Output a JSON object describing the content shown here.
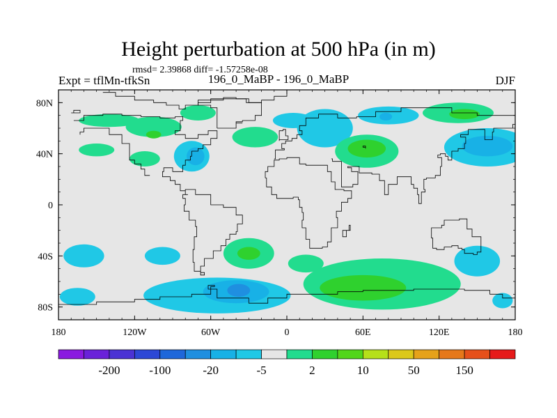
{
  "chart_data": {
    "type": "heatmap",
    "title": "Height perturbation at 500 hPa (in m)",
    "stats": {
      "rmsd": "2.39868",
      "diff": "-1.57258e-08",
      "text": "rmsd= 2.39868 diff= -1.57258e-08"
    },
    "left_label": "Expt = tflMn-tfkSn",
    "center_label": "196_0_MaBP - 196_0_MaBP",
    "right_label": "DJF",
    "units": "m",
    "xlim": [
      -180,
      180
    ],
    "ylim": [
      -90,
      90
    ],
    "x_ticks": [
      {
        "value": -180,
        "label": "180"
      },
      {
        "value": -120,
        "label": "120W"
      },
      {
        "value": -60,
        "label": "60W"
      },
      {
        "value": 0,
        "label": "0"
      },
      {
        "value": 60,
        "label": "60E"
      },
      {
        "value": 120,
        "label": "120E"
      },
      {
        "value": 180,
        "label": "180"
      }
    ],
    "y_ticks": [
      {
        "value": 80,
        "label": "80N"
      },
      {
        "value": 40,
        "label": "40N"
      },
      {
        "value": 0,
        "label": "0"
      },
      {
        "value": -40,
        "label": "40S"
      },
      {
        "value": -80,
        "label": "80S"
      }
    ],
    "colorbar": {
      "colors": [
        "#8a1ae0",
        "#6a22d9",
        "#4b33d4",
        "#2d48d6",
        "#1e67da",
        "#1f8fe0",
        "#18b1e6",
        "#20c8e6",
        "#e6e6e6",
        "#22dc8e",
        "#2fd12e",
        "#52d61a",
        "#b6e01a",
        "#dcc81a",
        "#e6a21a",
        "#e6781a",
        "#e6501a",
        "#e61a1a"
      ],
      "labels": [
        "-200",
        "-100",
        "-20",
        "-5",
        "2",
        "10",
        "50",
        "150"
      ],
      "label_after_box": [
        1,
        3,
        5,
        7,
        9,
        11,
        13,
        15
      ]
    },
    "anomalies": [
      {
        "lon": -140,
        "lat": 66,
        "rlon": 24,
        "rlat": 5,
        "level": 1
      },
      {
        "lon": -105,
        "lat": 61,
        "rlon": 22,
        "rlat": 8,
        "level": 1
      },
      {
        "lon": -105,
        "lat": 55,
        "rlon": 6,
        "rlat": 3,
        "level": 2
      },
      {
        "lon": -112,
        "lat": 36,
        "rlon": 12,
        "rlat": 6,
        "level": 1
      },
      {
        "lon": -150,
        "lat": 43,
        "rlon": 14,
        "rlat": 5,
        "level": 1
      },
      {
        "lon": -75,
        "lat": 38,
        "rlon": 14,
        "rlat": 12,
        "level": -1
      },
      {
        "lon": -72,
        "lat": 38,
        "rlon": 7,
        "rlat": 7,
        "level": -2
      },
      {
        "lon": -70,
        "lat": 72,
        "rlon": 14,
        "rlat": 6,
        "level": 1
      },
      {
        "lon": -25,
        "lat": 53,
        "rlon": 18,
        "rlat": 8,
        "level": 1
      },
      {
        "lon": 5,
        "lat": 66,
        "rlon": 16,
        "rlat": 6,
        "level": -1
      },
      {
        "lon": 30,
        "lat": 60,
        "rlon": 22,
        "rlat": 15,
        "level": -1
      },
      {
        "lon": 63,
        "lat": 42,
        "rlon": 25,
        "rlat": 13,
        "level": 1
      },
      {
        "lon": 63,
        "lat": 44,
        "rlon": 15,
        "rlat": 7,
        "level": 2
      },
      {
        "lon": 80,
        "lat": 70,
        "rlon": 24,
        "rlat": 7,
        "level": -1
      },
      {
        "lon": 78,
        "lat": 69,
        "rlon": 5,
        "rlat": 3,
        "level": -2
      },
      {
        "lon": 135,
        "lat": 72,
        "rlon": 28,
        "rlat": 8,
        "level": 1
      },
      {
        "lon": 140,
        "lat": 71,
        "rlon": 12,
        "rlat": 4,
        "level": 2
      },
      {
        "lon": 158,
        "lat": 45,
        "rlon": 34,
        "rlat": 15,
        "level": -1
      },
      {
        "lon": 158,
        "lat": 46,
        "rlon": 20,
        "rlat": 8,
        "level": -2
      },
      {
        "lon": -160,
        "lat": -40,
        "rlon": 16,
        "rlat": 9,
        "level": -1
      },
      {
        "lon": -98,
        "lat": -40,
        "rlon": 14,
        "rlat": 7,
        "level": -1
      },
      {
        "lon": -30,
        "lat": -38,
        "rlon": 20,
        "rlat": 12,
        "level": 1
      },
      {
        "lon": -30,
        "lat": -38,
        "rlon": 9,
        "rlat": 5,
        "level": 2
      },
      {
        "lon": 15,
        "lat": -46,
        "rlon": 14,
        "rlat": 7,
        "level": 1
      },
      {
        "lon": 150,
        "lat": -44,
        "rlon": 18,
        "rlat": 12,
        "level": -1
      },
      {
        "lon": -55,
        "lat": -71,
        "rlon": 58,
        "rlat": 14,
        "level": -1
      },
      {
        "lon": -40,
        "lat": -68,
        "rlon": 26,
        "rlat": 9,
        "level": -2
      },
      {
        "lon": -38,
        "lat": -67,
        "rlon": 9,
        "rlat": 5,
        "level": -3
      },
      {
        "lon": -165,
        "lat": -72,
        "rlon": 14,
        "rlat": 7,
        "level": -1
      },
      {
        "lon": 75,
        "lat": -62,
        "rlon": 62,
        "rlat": 20,
        "level": 1
      },
      {
        "lon": 60,
        "lat": -65,
        "rlon": 34,
        "rlat": 10,
        "level": 2
      },
      {
        "lon": 170,
        "lat": -75,
        "rlon": 8,
        "rlat": 6,
        "level": -1
      }
    ],
    "coastlines": [
      [
        [
          -145,
          88
        ],
        [
          -135,
          85
        ],
        [
          -120,
          82
        ],
        [
          -105,
          80
        ],
        [
          -95,
          78
        ],
        [
          -85,
          75
        ],
        [
          -80,
          78
        ],
        [
          -70,
          80
        ],
        [
          -60,
          82
        ],
        [
          -50,
          84
        ],
        [
          -40,
          83
        ],
        [
          -30,
          80
        ],
        [
          -20,
          82
        ],
        [
          -10,
          85
        ],
        [
          0,
          88
        ]
      ],
      [
        [
          -168,
          66
        ],
        [
          -160,
          70
        ],
        [
          -145,
          71
        ],
        [
          -130,
          70
        ],
        [
          -115,
          69
        ],
        [
          -100,
          68
        ],
        [
          -88,
          69
        ],
        [
          -82,
          66
        ],
        [
          -84,
          58
        ],
        [
          -88,
          55
        ],
        [
          -80,
          52
        ],
        [
          -70,
          55
        ],
        [
          -62,
          58
        ],
        [
          -55,
          52
        ],
        [
          -60,
          47
        ],
        [
          -66,
          44
        ],
        [
          -70,
          42
        ],
        [
          -75,
          38
        ],
        [
          -76,
          35
        ],
        [
          -80,
          31
        ],
        [
          -82,
          26
        ],
        [
          -90,
          29
        ],
        [
          -97,
          26
        ],
        [
          -98,
          22
        ],
        [
          -92,
          19
        ],
        [
          -88,
          16
        ],
        [
          -84,
          11
        ],
        [
          -80,
          8
        ],
        [
          -78,
          8
        ],
        [
          -82,
          5
        ],
        [
          -80,
          0
        ],
        [
          -81,
          -5
        ],
        [
          -77,
          -12
        ],
        [
          -72,
          -17
        ],
        [
          -71,
          -25
        ],
        [
          -73,
          -35
        ],
        [
          -74,
          -45
        ],
        [
          -73,
          -52
        ],
        [
          -68,
          -55
        ],
        [
          -65,
          -53
        ],
        [
          -68,
          -48
        ],
        [
          -65,
          -42
        ],
        [
          -58,
          -36
        ],
        [
          -52,
          -32
        ],
        [
          -48,
          -27
        ],
        [
          -45,
          -23
        ],
        [
          -40,
          -21
        ],
        [
          -39,
          -15
        ],
        [
          -35,
          -8
        ],
        [
          -40,
          -2
        ],
        [
          -50,
          0
        ],
        [
          -60,
          8
        ],
        [
          -72,
          12
        ],
        [
          -80,
          10
        ]
      ],
      [
        [
          -108,
          23
        ],
        [
          -112,
          28
        ],
        [
          -115,
          32
        ],
        [
          -120,
          35
        ],
        [
          -124,
          40
        ],
        [
          -124,
          48
        ],
        [
          -130,
          55
        ],
        [
          -140,
          60
        ],
        [
          -152,
          60
        ],
        [
          -160,
          57
        ],
        [
          -163,
          55
        ]
      ],
      [
        [
          -10,
          36
        ],
        [
          -9,
          43
        ],
        [
          -2,
          44
        ],
        [
          -4,
          48
        ],
        [
          -1,
          50
        ],
        [
          4,
          52
        ],
        [
          8,
          55
        ],
        [
          12,
          58
        ],
        [
          10,
          62
        ],
        [
          15,
          68
        ],
        [
          25,
          71
        ],
        [
          40,
          68
        ],
        [
          55,
          69
        ],
        [
          70,
          73
        ],
        [
          90,
          76
        ],
        [
          110,
          76
        ],
        [
          130,
          72
        ],
        [
          150,
          70
        ],
        [
          170,
          70
        ],
        [
          180,
          68
        ]
      ],
      [
        [
          -17,
          21
        ],
        [
          -16,
          14
        ],
        [
          -12,
          8
        ],
        [
          -8,
          5
        ],
        [
          -3,
          5
        ],
        [
          5,
          6
        ],
        [
          9,
          4
        ],
        [
          10,
          -2
        ],
        [
          12,
          -6
        ],
        [
          13,
          -12
        ],
        [
          12,
          -18
        ],
        [
          15,
          -27
        ],
        [
          18,
          -34
        ],
        [
          23,
          -34
        ],
        [
          28,
          -33
        ],
        [
          32,
          -29
        ],
        [
          35,
          -24
        ],
        [
          35,
          -18
        ],
        [
          40,
          -15
        ],
        [
          40,
          -10
        ],
        [
          39,
          -5
        ],
        [
          43,
          2
        ],
        [
          48,
          5
        ],
        [
          51,
          11
        ],
        [
          45,
          12
        ],
        [
          43,
          12
        ],
        [
          38,
          18
        ],
        [
          35,
          26
        ],
        [
          32,
          31
        ],
        [
          26,
          31
        ],
        [
          20,
          31
        ],
        [
          15,
          32
        ],
        [
          10,
          37
        ],
        [
          0,
          36
        ],
        [
          -6,
          35
        ],
        [
          -10,
          30
        ],
        [
          -15,
          26
        ],
        [
          -17,
          21
        ]
      ],
      [
        [
          35,
          36
        ],
        [
          36,
          34
        ],
        [
          43,
          14
        ],
        [
          52,
          16
        ],
        [
          56,
          22
        ],
        [
          56,
          26
        ],
        [
          51,
          29
        ],
        [
          48,
          30
        ],
        [
          57,
          25
        ],
        [
          62,
          25
        ],
        [
          67,
          24
        ],
        [
          73,
          19
        ],
        [
          77,
          8
        ],
        [
          80,
          13
        ],
        [
          80,
          16
        ],
        [
          87,
          22
        ],
        [
          92,
          22
        ],
        [
          98,
          16
        ],
        [
          100,
          13
        ],
        [
          103,
          8
        ],
        [
          104,
          1
        ],
        [
          106,
          10
        ],
        [
          109,
          12
        ],
        [
          108,
          20
        ],
        [
          110,
          21
        ],
        [
          117,
          23
        ],
        [
          121,
          30
        ],
        [
          122,
          37
        ],
        [
          119,
          39
        ],
        [
          121,
          40
        ],
        [
          125,
          38
        ],
        [
          127,
          35
        ],
        [
          129,
          35
        ],
        [
          130,
          42
        ],
        [
          135,
          44
        ],
        [
          140,
          48
        ],
        [
          141,
          53
        ],
        [
          137,
          55
        ],
        [
          143,
          59
        ],
        [
          155,
          59
        ],
        [
          156,
          51
        ],
        [
          162,
          57
        ],
        [
          163,
          60
        ],
        [
          170,
          60
        ],
        [
          178,
          63
        ],
        [
          180,
          65
        ]
      ],
      [
        [
          114,
          -22
        ],
        [
          114,
          -26
        ],
        [
          115,
          -34
        ],
        [
          118,
          -35
        ],
        [
          124,
          -33
        ],
        [
          130,
          -32
        ],
        [
          135,
          -34
        ],
        [
          138,
          -35
        ],
        [
          140,
          -38
        ],
        [
          147,
          -39
        ],
        [
          150,
          -37
        ],
        [
          153,
          -30
        ],
        [
          153,
          -25
        ],
        [
          146,
          -19
        ],
        [
          142,
          -11
        ],
        [
          136,
          -12
        ],
        [
          130,
          -12
        ],
        [
          124,
          -16
        ],
        [
          122,
          -18
        ],
        [
          114,
          -22
        ]
      ],
      [
        [
          -180,
          -78
        ],
        [
          -150,
          -76
        ],
        [
          -120,
          -74
        ],
        [
          -100,
          -72
        ],
        [
          -75,
          -70
        ],
        [
          -60,
          -64
        ],
        [
          -57,
          -63
        ],
        [
          -62,
          -66
        ],
        [
          -55,
          -73
        ],
        [
          -30,
          -77
        ],
        [
          -15,
          -73
        ],
        [
          0,
          -70
        ],
        [
          20,
          -70
        ],
        [
          40,
          -68
        ],
        [
          60,
          -67
        ],
        [
          80,
          -67
        ],
        [
          100,
          -66
        ],
        [
          120,
          -66
        ],
        [
          140,
          -67
        ],
        [
          160,
          -70
        ],
        [
          170,
          -73
        ],
        [
          180,
          -78
        ]
      ],
      [
        [
          -55,
          60
        ],
        [
          -45,
          60
        ],
        [
          -40,
          65
        ],
        [
          -35,
          66
        ],
        [
          -25,
          70
        ],
        [
          -20,
          76
        ],
        [
          -20,
          80
        ],
        [
          -32,
          83
        ],
        [
          -40,
          83
        ],
        [
          -60,
          82
        ],
        [
          -70,
          78
        ],
        [
          -60,
          76
        ],
        [
          -55,
          60
        ]
      ],
      [
        [
          -6,
          50
        ],
        [
          -6,
          58
        ],
        [
          -3,
          59
        ],
        [
          -1,
          54
        ],
        [
          1,
          51
        ],
        [
          -6,
          50
        ]
      ],
      [
        [
          -170,
          72
        ],
        [
          -168,
          74
        ],
        [
          -163,
          72
        ],
        [
          -170,
          72
        ]
      ],
      [
        [
          -40,
          64
        ],
        [
          -35,
          64
        ]
      ],
      [
        [
          60,
          45
        ],
        [
          62,
          44
        ],
        [
          62,
          46
        ],
        [
          60,
          45
        ]
      ],
      [
        [
          49,
          -16
        ],
        [
          50,
          -20
        ],
        [
          47,
          -25
        ],
        [
          44,
          -20
        ],
        [
          49,
          -16
        ]
      ]
    ]
  }
}
